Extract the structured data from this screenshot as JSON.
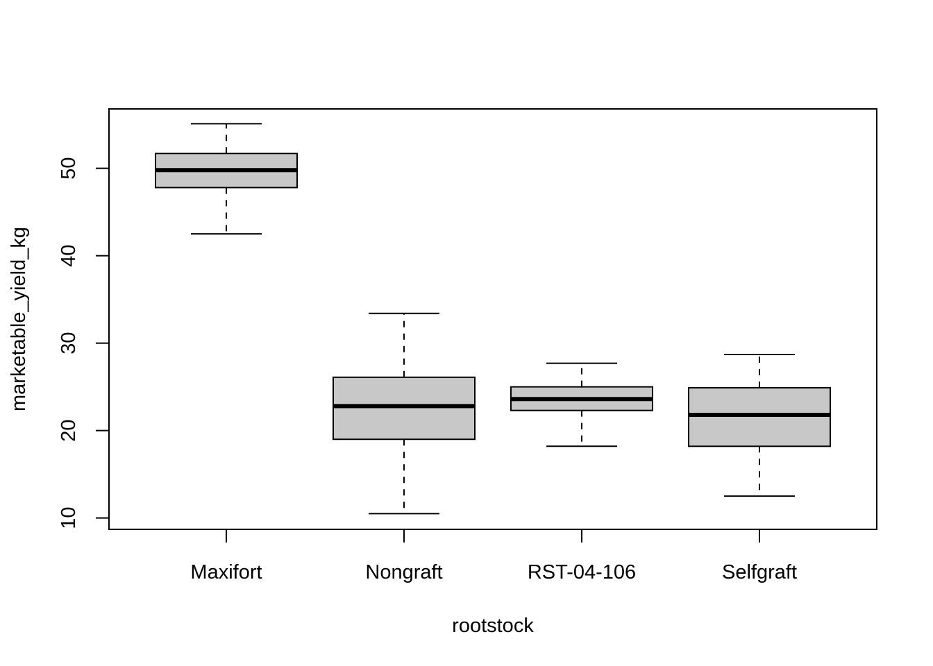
{
  "chart_data": {
    "type": "boxplot",
    "title": "",
    "xlabel": "rootstock",
    "ylabel": "marketable_yield_kg",
    "ylim": [
      8.7,
      56.8
    ],
    "yticks": [
      10,
      20,
      30,
      40,
      50
    ],
    "grid": false,
    "box_fill": "#c8c8c8",
    "categories": [
      "Maxifort",
      "Nongraft",
      "RST-04-106",
      "Selfgraft"
    ],
    "boxes": [
      {
        "label": "Maxifort",
        "whisker_low": 42.5,
        "q1": 47.8,
        "median": 49.8,
        "q3": 51.7,
        "whisker_high": 55.1
      },
      {
        "label": "Nongraft",
        "whisker_low": 10.5,
        "q1": 19.0,
        "median": 22.8,
        "q3": 26.1,
        "whisker_high": 33.4
      },
      {
        "label": "RST-04-106",
        "whisker_low": 18.2,
        "q1": 22.3,
        "median": 23.6,
        "q3": 25.0,
        "whisker_high": 27.7
      },
      {
        "label": "Selfgraft",
        "whisker_low": 12.5,
        "q1": 18.2,
        "median": 21.8,
        "q3": 24.9,
        "whisker_high": 28.7
      }
    ]
  }
}
